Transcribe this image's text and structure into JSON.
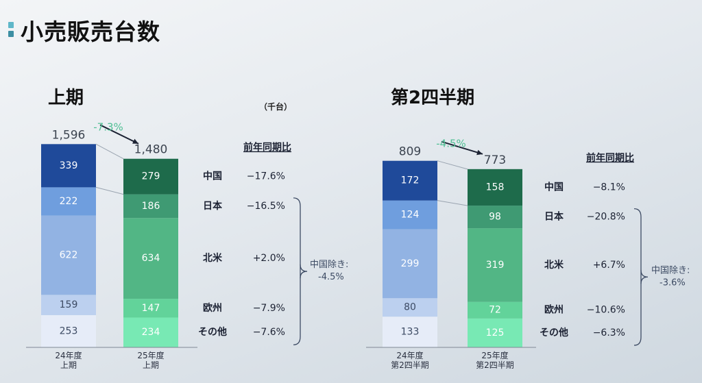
{
  "title": "小売販売台数",
  "unit": "（千台）",
  "colors": {
    "prev": [
      "#1f4a9a",
      "#6f9ede",
      "#92b3e3",
      "#bcd0ef",
      "#e6ecf8"
    ],
    "curr": [
      "#1e6b4b",
      "#3f9a73",
      "#52b685",
      "#62d39a",
      "#78e9b4"
    ],
    "pct": "#4fbf94",
    "accent": [
      "#5fb7c9",
      "#3d8fa3"
    ]
  },
  "chart_data": [
    {
      "type": "bar",
      "stacked": true,
      "title": "上期",
      "categories": [
        "24年度\n上期",
        "25年度\n上期"
      ],
      "segments": [
        "中国",
        "日本",
        "北米",
        "欧州",
        "その他"
      ],
      "series": [
        {
          "name": "中国",
          "values": [
            339,
            279
          ],
          "yoy": "−17.6%"
        },
        {
          "name": "日本",
          "values": [
            222,
            186
          ],
          "yoy": "−16.5%"
        },
        {
          "name": "北米",
          "values": [
            622,
            634
          ],
          "yoy": "+2.0%"
        },
        {
          "name": "欧州",
          "values": [
            159,
            147
          ],
          "yoy": "−7.9%"
        },
        {
          "name": "その他",
          "values": [
            253,
            234
          ],
          "yoy": "−7.6%"
        }
      ],
      "totals": [
        "1,596",
        "1,480"
      ],
      "change": "-7.3%",
      "yoy_header": "前年同期比",
      "excl_china": [
        "中国除き:",
        "-4.5%"
      ]
    },
    {
      "type": "bar",
      "stacked": true,
      "title": "第2四半期",
      "categories": [
        "24年度\n第2四半期",
        "25年度\n第2四半期"
      ],
      "segments": [
        "中国",
        "日本",
        "北米",
        "欧州",
        "その他"
      ],
      "series": [
        {
          "name": "中国",
          "values": [
            172,
            158
          ],
          "yoy": "−8.1%"
        },
        {
          "name": "日本",
          "values": [
            124,
            98
          ],
          "yoy": "−20.8%"
        },
        {
          "name": "北米",
          "values": [
            299,
            319
          ],
          "yoy": "+6.7%"
        },
        {
          "name": "欧州",
          "values": [
            80,
            72
          ],
          "yoy": "−10.6%"
        },
        {
          "name": "その他",
          "values": [
            133,
            125
          ],
          "yoy": "−6.3%"
        }
      ],
      "totals": [
        "809",
        "773"
      ],
      "change": "-4.5%",
      "yoy_header": "前年同期比",
      "excl_china": [
        "中国除き:",
        "-3.6%"
      ]
    }
  ]
}
